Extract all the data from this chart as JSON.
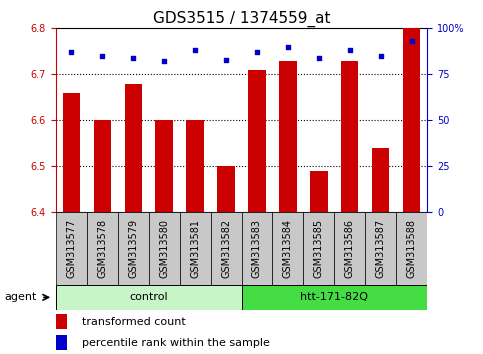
{
  "title": "GDS3515 / 1374559_at",
  "samples": [
    "GSM313577",
    "GSM313578",
    "GSM313579",
    "GSM313580",
    "GSM313581",
    "GSM313582",
    "GSM313583",
    "GSM313584",
    "GSM313585",
    "GSM313586",
    "GSM313587",
    "GSM313588"
  ],
  "red_values": [
    6.66,
    6.6,
    6.68,
    6.6,
    6.6,
    6.5,
    6.71,
    6.73,
    6.49,
    6.73,
    6.54,
    6.8
  ],
  "blue_values": [
    87,
    85,
    84,
    82,
    88,
    83,
    87,
    90,
    84,
    88,
    85,
    93
  ],
  "ylim_left": [
    6.4,
    6.8
  ],
  "ylim_right": [
    0,
    100
  ],
  "yticks_left": [
    6.4,
    6.5,
    6.6,
    6.7,
    6.8
  ],
  "yticks_right": [
    0,
    25,
    50,
    75,
    100
  ],
  "ytick_labels_right": [
    "0",
    "25",
    "50",
    "75",
    "100%"
  ],
  "grid_ticks": [
    6.5,
    6.6,
    6.7
  ],
  "group_labels": [
    "control",
    "htt-171-82Q"
  ],
  "group_ranges": [
    [
      0,
      5
    ],
    [
      6,
      11
    ]
  ],
  "group_color_light": "#c8f5c8",
  "group_color_dark": "#44dd44",
  "agent_label": "agent",
  "legend_red": "transformed count",
  "legend_blue": "percentile rank within the sample",
  "bar_color": "#cc0000",
  "dot_color": "#0000cc",
  "bar_width": 0.55,
  "bar_bottom": 6.4,
  "right_axis_color": "#0000cc",
  "left_axis_color": "#cc0000",
  "title_fontsize": 11,
  "tick_fontsize": 7,
  "label_fontsize": 8,
  "box_color": "#c8c8c8"
}
